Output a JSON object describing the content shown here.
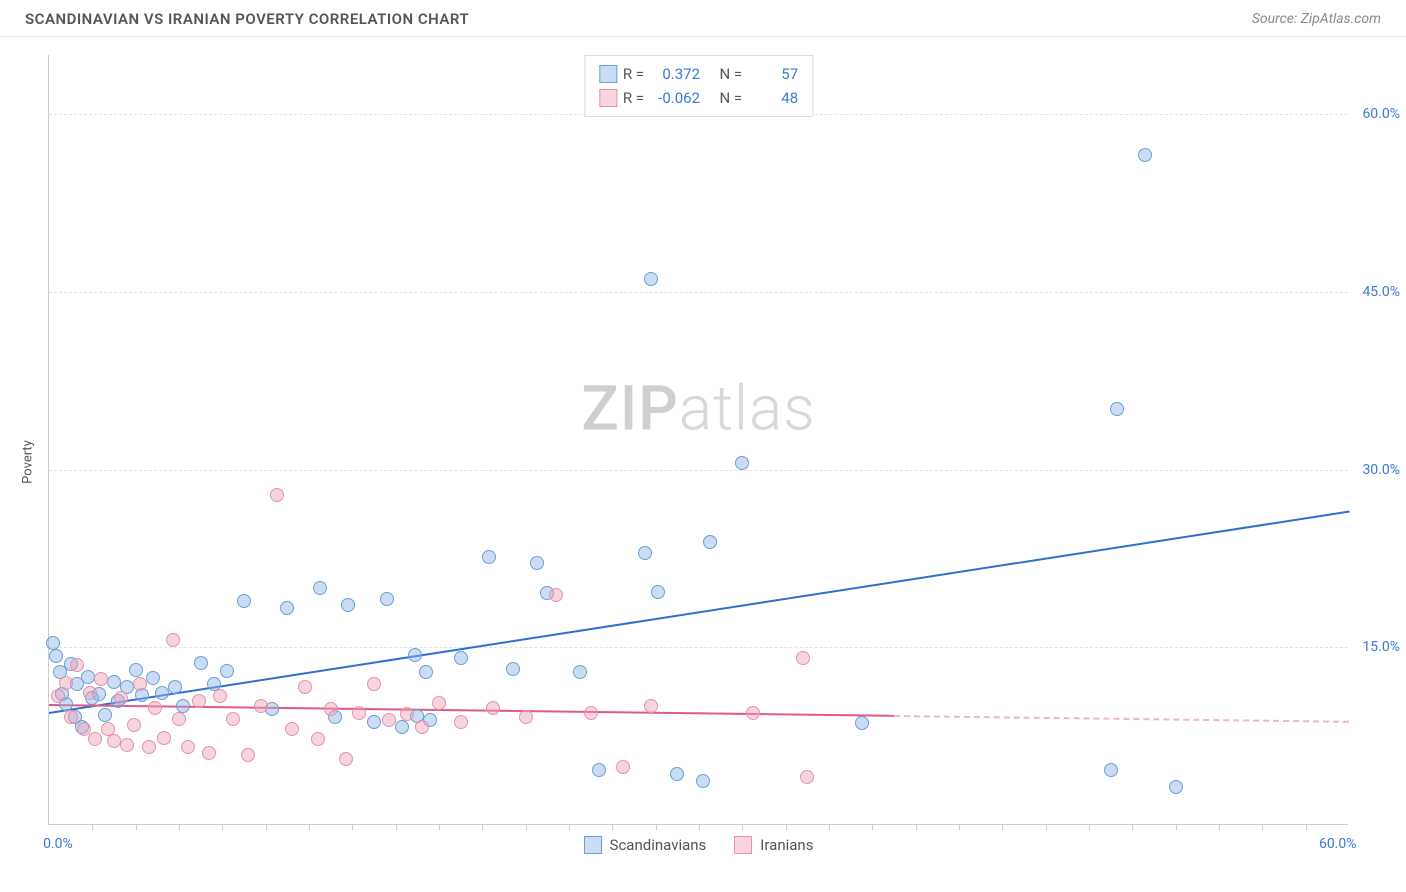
{
  "header": {
    "title": "SCANDINAVIAN VS IRANIAN POVERTY CORRELATION CHART",
    "source": "Source: ZipAtlas.com"
  },
  "ylabel": "Poverty",
  "watermark": {
    "bold": "ZIP",
    "light": "atlas"
  },
  "chart": {
    "type": "scatter",
    "background_color": "#ffffff",
    "grid_color": "#e2e2e2",
    "axis_color": "#cccccc",
    "tick_label_color": "#3b78d8",
    "xlim": [
      0,
      60
    ],
    "ylim": [
      0,
      65
    ],
    "y_gridlines": [
      15,
      30,
      45,
      60
    ],
    "y_tick_labels": [
      "15.0%",
      "30.0%",
      "45.0%",
      "60.0%"
    ],
    "x_ticks_minor": [
      2,
      4,
      6,
      8,
      10,
      12,
      14,
      16,
      18,
      20,
      22,
      24,
      26,
      28,
      30,
      32,
      34,
      36,
      38,
      40,
      42,
      44,
      46,
      48,
      50,
      52,
      54,
      56,
      58
    ],
    "x_tick_labels": [
      {
        "x": 0,
        "label": "0.0%"
      },
      {
        "x": 60,
        "label": "60.0%"
      }
    ],
    "marker_radius": 7,
    "marker_border_width": 1,
    "series": [
      {
        "name": "Scandinavians",
        "fill_color": "rgba(140,180,230,0.45)",
        "border_color": "#6a9fd4",
        "trend_color": "#2f6fd0",
        "trend": {
          "x1": 0,
          "y1": 9.5,
          "x2": 60,
          "y2": 26.5,
          "solid_until_x": 60
        },
        "R": "0.372",
        "N": "57",
        "points": [
          [
            0.3,
            14.2
          ],
          [
            0.5,
            12.8
          ],
          [
            0.8,
            10.1
          ],
          [
            1.0,
            13.5
          ],
          [
            1.2,
            9.0
          ],
          [
            1.3,
            11.8
          ],
          [
            1.5,
            8.2
          ],
          [
            1.8,
            12.4
          ],
          [
            2.0,
            10.6
          ],
          [
            2.3,
            11.0
          ],
          [
            2.6,
            9.2
          ],
          [
            3.0,
            12.0
          ],
          [
            3.2,
            10.4
          ],
          [
            3.6,
            11.6
          ],
          [
            4.0,
            13.0
          ],
          [
            4.3,
            10.9
          ],
          [
            4.8,
            12.3
          ],
          [
            5.2,
            11.1
          ],
          [
            5.8,
            11.6
          ],
          [
            6.2,
            10.0
          ],
          [
            7.0,
            13.6
          ],
          [
            7.6,
            11.8
          ],
          [
            8.2,
            12.9
          ],
          [
            9.0,
            18.8
          ],
          [
            10.3,
            9.7
          ],
          [
            11.0,
            18.2
          ],
          [
            12.5,
            19.9
          ],
          [
            13.2,
            9.0
          ],
          [
            13.8,
            18.5
          ],
          [
            15.0,
            8.6
          ],
          [
            15.6,
            19.0
          ],
          [
            16.3,
            8.2
          ],
          [
            16.9,
            14.3
          ],
          [
            17.0,
            9.1
          ],
          [
            17.4,
            12.8
          ],
          [
            17.6,
            8.8
          ],
          [
            19.0,
            14.0
          ],
          [
            20.3,
            22.5
          ],
          [
            21.4,
            13.1
          ],
          [
            22.5,
            22.0
          ],
          [
            23.0,
            19.5
          ],
          [
            24.5,
            12.8
          ],
          [
            25.4,
            4.6
          ],
          [
            27.5,
            22.9
          ],
          [
            27.8,
            46.0
          ],
          [
            28.1,
            19.6
          ],
          [
            29.0,
            4.2
          ],
          [
            30.2,
            3.6
          ],
          [
            30.5,
            23.8
          ],
          [
            32.0,
            30.5
          ],
          [
            37.5,
            8.5
          ],
          [
            49.0,
            4.6
          ],
          [
            49.3,
            35.0
          ],
          [
            50.6,
            56.5
          ],
          [
            52.0,
            3.1
          ],
          [
            0.2,
            15.3
          ],
          [
            0.6,
            11.0
          ]
        ]
      },
      {
        "name": "Iranians",
        "fill_color": "rgba(240,160,185,0.45)",
        "border_color": "#e493ad",
        "trend_color": "#e05a86",
        "trend": {
          "x1": 0,
          "y1": 10.2,
          "x2": 60,
          "y2": 8.8,
          "solid_until_x": 39
        },
        "R": "-0.062",
        "N": "48",
        "points": [
          [
            0.4,
            10.8
          ],
          [
            0.8,
            11.9
          ],
          [
            1.0,
            9.0
          ],
          [
            1.3,
            13.4
          ],
          [
            1.6,
            8.0
          ],
          [
            1.9,
            11.1
          ],
          [
            2.1,
            7.2
          ],
          [
            2.4,
            12.2
          ],
          [
            2.7,
            8.0
          ],
          [
            3.0,
            7.0
          ],
          [
            3.3,
            10.6
          ],
          [
            3.6,
            6.7
          ],
          [
            3.9,
            8.4
          ],
          [
            4.2,
            11.8
          ],
          [
            4.6,
            6.5
          ],
          [
            4.9,
            9.8
          ],
          [
            5.3,
            7.3
          ],
          [
            5.7,
            15.5
          ],
          [
            6.0,
            8.9
          ],
          [
            6.4,
            6.5
          ],
          [
            6.9,
            10.4
          ],
          [
            7.4,
            6.0
          ],
          [
            7.9,
            10.8
          ],
          [
            8.5,
            8.9
          ],
          [
            9.2,
            5.8
          ],
          [
            9.8,
            10.0
          ],
          [
            10.5,
            27.8
          ],
          [
            11.2,
            8.0
          ],
          [
            11.8,
            11.6
          ],
          [
            12.4,
            7.2
          ],
          [
            13.0,
            9.7
          ],
          [
            13.7,
            5.5
          ],
          [
            14.3,
            9.4
          ],
          [
            15.0,
            11.8
          ],
          [
            15.7,
            8.8
          ],
          [
            16.5,
            9.3
          ],
          [
            17.2,
            8.2
          ],
          [
            18.0,
            10.2
          ],
          [
            19.0,
            8.6
          ],
          [
            20.5,
            9.8
          ],
          [
            22.0,
            9.0
          ],
          [
            23.4,
            19.3
          ],
          [
            25.0,
            9.4
          ],
          [
            26.5,
            4.8
          ],
          [
            27.8,
            10.0
          ],
          [
            32.5,
            9.4
          ],
          [
            34.8,
            14.0
          ],
          [
            35.0,
            4.0
          ]
        ]
      }
    ]
  },
  "legend_top": {
    "r_label": "R =",
    "n_label": "N ="
  },
  "legend_bottom": {
    "items": [
      "Scandinavians",
      "Iranians"
    ]
  }
}
